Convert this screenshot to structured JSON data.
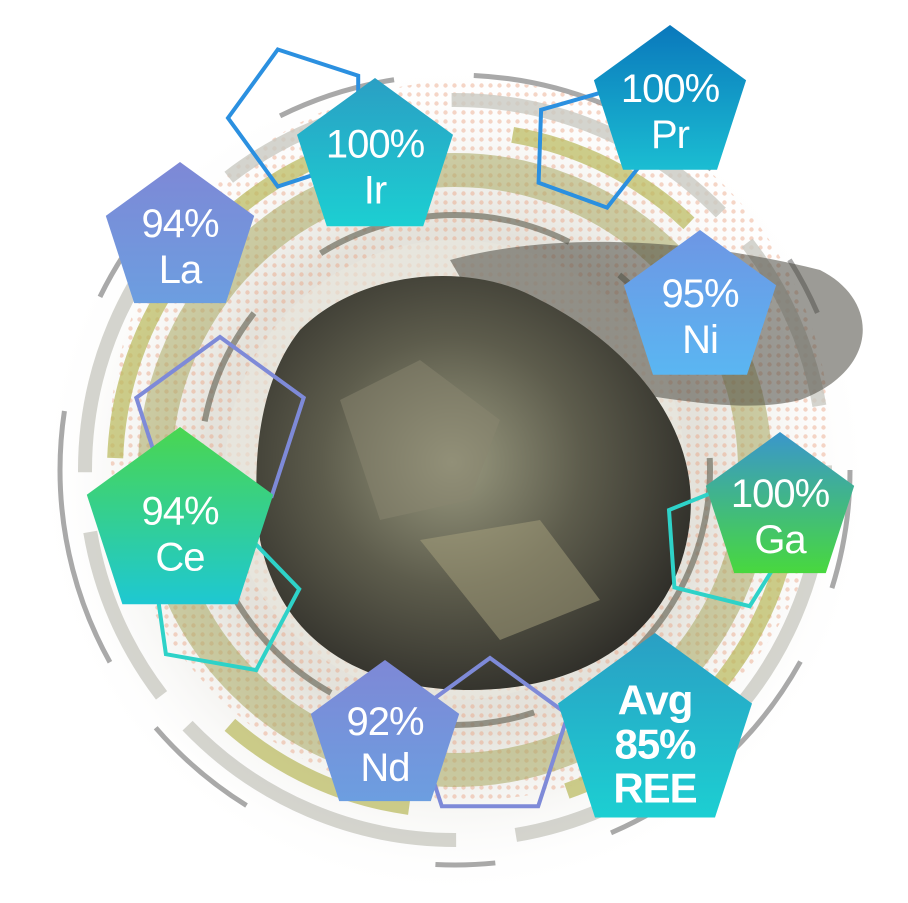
{
  "nodes": [
    {
      "lines": [
        "100%",
        "Ir"
      ]
    },
    {
      "lines": [
        "100%",
        "Pr"
      ]
    },
    {
      "lines": [
        "94%",
        "La"
      ]
    },
    {
      "lines": [
        "95%",
        "Ni"
      ]
    },
    {
      "lines": [
        "100%",
        "Ga"
      ]
    },
    {
      "lines": [
        "94%",
        "Ce"
      ]
    },
    {
      "lines": [
        "92%",
        "Nd"
      ]
    },
    {
      "lines": [
        "Avg",
        "85%",
        "REE"
      ]
    }
  ]
}
